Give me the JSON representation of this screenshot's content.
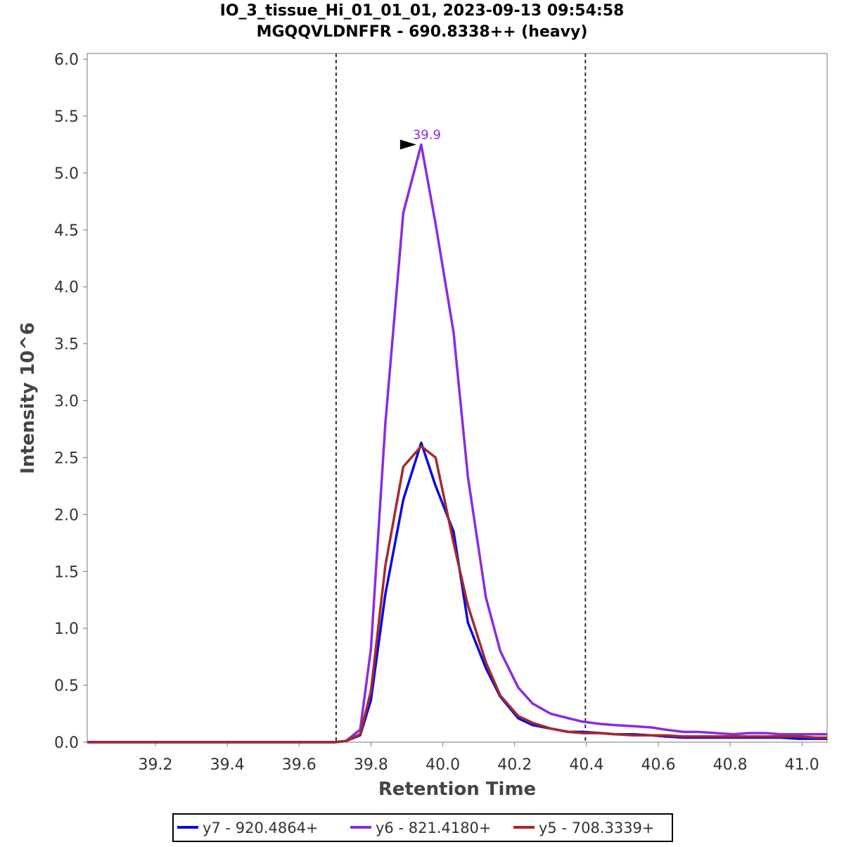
{
  "chart_data": {
    "type": "line",
    "title": "IO_3_tissue_Hi_01_01_01, 2023-09-13 09:54:58",
    "subtitle": "MGQQVLDNFFR - 690.8338++ (heavy)",
    "xlabel": "Retention Time",
    "ylabel": "Intensity 10^6",
    "xlim": [
      39.01,
      41.07
    ],
    "ylim": [
      0,
      6.05
    ],
    "x_ticks": [
      "39.2",
      "39.4",
      "39.6",
      "39.8",
      "40.0",
      "40.2",
      "40.4",
      "40.6",
      "40.8",
      "41.0"
    ],
    "y_ticks": [
      "0.0",
      "0.5",
      "1.0",
      "1.5",
      "2.0",
      "2.5",
      "3.0",
      "3.5",
      "4.0",
      "4.5",
      "5.0",
      "5.5",
      "6.0"
    ],
    "grid": false,
    "legend_position": "bottom",
    "boundaries": [
      39.703,
      40.397
    ],
    "peak_annotation": {
      "x": 39.936,
      "y": 5.25,
      "label": "39.9",
      "color": "#8a2be2"
    },
    "x": [
      39.01,
      39.06,
      39.1,
      39.15,
      39.19,
      39.24,
      39.29,
      39.33,
      39.38,
      39.42,
      39.47,
      39.52,
      39.56,
      39.61,
      39.66,
      39.7,
      39.73,
      39.77,
      39.8,
      39.84,
      39.89,
      39.94,
      39.98,
      40.03,
      40.07,
      40.12,
      40.16,
      40.21,
      40.25,
      40.3,
      40.35,
      40.39,
      40.44,
      40.48,
      40.53,
      40.58,
      40.62,
      40.67,
      40.71,
      40.76,
      40.81,
      40.85,
      40.9,
      40.94,
      40.99,
      41.04,
      41.07
    ],
    "series": [
      {
        "name": "y7 - 920.4864+",
        "color": "#0a0adf",
        "values": [
          0,
          0,
          0,
          0,
          0,
          0,
          0,
          0,
          0,
          0,
          0,
          0,
          0,
          0,
          0,
          0,
          0.01,
          0.06,
          0.37,
          1.3,
          2.13,
          2.63,
          2.25,
          1.85,
          1.05,
          0.65,
          0.4,
          0.21,
          0.15,
          0.12,
          0.09,
          0.09,
          0.08,
          0.07,
          0.07,
          0.06,
          0.05,
          0.04,
          0.04,
          0.04,
          0.04,
          0.04,
          0.04,
          0.04,
          0.03,
          0.03,
          0.03
        ]
      },
      {
        "name": "y6 - 821.4180+",
        "color": "#8a2be2",
        "values": [
          0,
          0,
          0,
          0,
          0,
          0,
          0,
          0,
          0,
          0,
          0,
          0,
          0,
          0,
          0,
          0,
          0.01,
          0.11,
          0.82,
          2.8,
          4.65,
          5.25,
          4.55,
          3.6,
          2.33,
          1.27,
          0.8,
          0.48,
          0.34,
          0.25,
          0.21,
          0.18,
          0.16,
          0.15,
          0.14,
          0.13,
          0.11,
          0.09,
          0.09,
          0.08,
          0.07,
          0.08,
          0.08,
          0.07,
          0.07,
          0.07,
          0.07
        ]
      },
      {
        "name": "y5 - 708.3339+",
        "color": "#a52a2a",
        "values": [
          0,
          0,
          0,
          0,
          0,
          0,
          0,
          0,
          0,
          0,
          0,
          0,
          0,
          0,
          0,
          0,
          0.01,
          0.07,
          0.45,
          1.55,
          2.42,
          2.6,
          2.5,
          1.75,
          1.2,
          0.7,
          0.41,
          0.23,
          0.17,
          0.12,
          0.09,
          0.08,
          0.08,
          0.07,
          0.06,
          0.06,
          0.06,
          0.05,
          0.05,
          0.05,
          0.05,
          0.05,
          0.05,
          0.05,
          0.05,
          0.04,
          0.04
        ]
      }
    ]
  }
}
